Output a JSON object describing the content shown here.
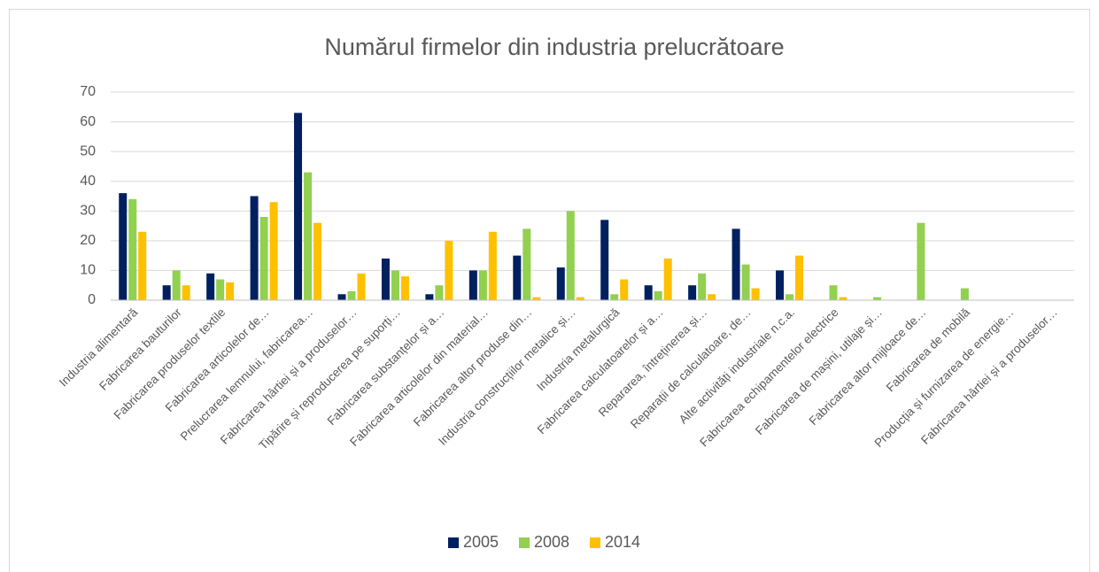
{
  "chart_data": {
    "type": "bar",
    "title": "Numărul firmelor din industria prelucrătoare",
    "categories": [
      "Industria alimentară",
      "Fabricarea bauturilor",
      "Fabricarea produselor textile",
      "Fabricarea articolelor de…",
      "Prelucrarea lemnului, fabricarea…",
      "Fabricarea hârtiei și a produselor…",
      "Tipărire și reproducerea pe suporți…",
      "Fabricarea substanțelor și a…",
      "Fabricarea articolelor din material…",
      "Fabricarea altor produse din…",
      "Industria construcțiilor metalice și…",
      "Industria metalurgică",
      "Fabricarea calculatoarelor și a…",
      "Repararea, întreținerea și…",
      "Reparații de calculatoare, de…",
      "Alte activități industriale n.c.a.",
      "Fabricarea echipamentelor electrice",
      "Fabricarea de mașini, utilaje și…",
      "Fabricarea altor mijloace de…",
      "Fabricarea de mobilă",
      "Producția și furnizarea de energie…",
      "Fabricarea hârtiei și a produselor…"
    ],
    "series": [
      {
        "name": "2005",
        "color": "#002060",
        "values": [
          36,
          5,
          9,
          35,
          63,
          2,
          14,
          2,
          10,
          15,
          11,
          27,
          5,
          5,
          24,
          10,
          0,
          0,
          0,
          0,
          0,
          0
        ]
      },
      {
        "name": "2008",
        "color": "#92d050",
        "values": [
          34,
          10,
          7,
          28,
          43,
          3,
          10,
          5,
          10,
          24,
          30,
          2,
          3,
          9,
          12,
          2,
          5,
          1,
          26,
          4,
          0,
          0
        ]
      },
      {
        "name": "2014",
        "color": "#ffc000",
        "values": [
          23,
          5,
          6,
          33,
          26,
          9,
          8,
          20,
          23,
          1,
          1,
          7,
          14,
          2,
          4,
          15,
          1,
          0,
          0,
          0,
          0,
          0
        ]
      }
    ],
    "ylim": [
      0,
      70
    ],
    "yticks": [
      0,
      10,
      20,
      30,
      40,
      50,
      60,
      70
    ],
    "grid": true,
    "legend": "bottom"
  }
}
